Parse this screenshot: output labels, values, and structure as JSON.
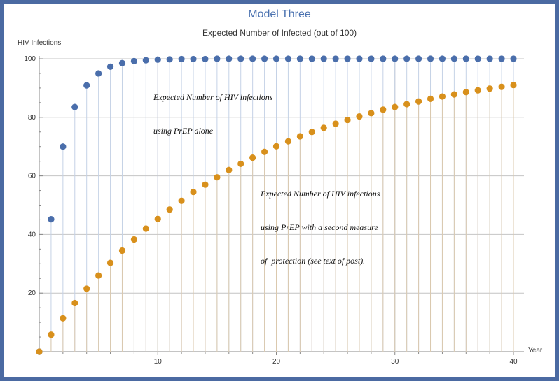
{
  "chart_data": {
    "type": "scatter",
    "title": "Model Three",
    "subtitle": "Expected Number of Infected (out of 100)",
    "xlabel": "Year",
    "ylabel": "HIV Infections",
    "xlim": [
      0,
      40
    ],
    "ylim": [
      0,
      100
    ],
    "x_ticks": [
      10,
      20,
      30,
      40
    ],
    "y_ticks": [
      20,
      40,
      60,
      80,
      100
    ],
    "grid": true,
    "drop_lines": true,
    "x": [
      0,
      1,
      2,
      3,
      4,
      5,
      6,
      7,
      8,
      9,
      10,
      11,
      12,
      13,
      14,
      15,
      16,
      17,
      18,
      19,
      20,
      21,
      22,
      23,
      24,
      25,
      26,
      27,
      28,
      29,
      30,
      31,
      32,
      33,
      34,
      35,
      36,
      37,
      38,
      39,
      40
    ],
    "series": [
      {
        "color": "#4a6eab",
        "values": [
          0,
          45.2,
          70,
          83.5,
          90.9,
          95,
          97.3,
          98.5,
          99.2,
          99.5,
          99.7,
          99.8,
          99.9,
          99.9,
          99.9,
          100,
          100,
          100,
          100,
          100,
          100,
          100,
          100,
          100,
          100,
          100,
          100,
          100,
          100,
          100,
          100,
          100,
          100,
          100,
          100,
          100,
          100,
          100,
          100,
          100,
          100
        ]
      },
      {
        "color": "#d8901c",
        "values": [
          0,
          5.8,
          11.4,
          16.6,
          21.5,
          26,
          30.3,
          34.5,
          38.3,
          42,
          45.3,
          48.5,
          51.5,
          54.5,
          57,
          59.5,
          62,
          64.1,
          66.2,
          68.2,
          70.1,
          71.8,
          73.5,
          75,
          76.4,
          77.8,
          79.1,
          80.3,
          81.4,
          82.6,
          83.5,
          84.5,
          85.4,
          86.3,
          87.1,
          87.8,
          88.6,
          89.2,
          89.8,
          90.4,
          91
        ]
      }
    ],
    "annotations": [
      {
        "lines": [
          "Expected Number of HIV infections",
          "using PrEP alone"
        ]
      },
      {
        "lines": [
          "Expected Number of HIV infections",
          "using PrEP with a second measure",
          "of  protection (see text of post)."
        ]
      }
    ]
  }
}
